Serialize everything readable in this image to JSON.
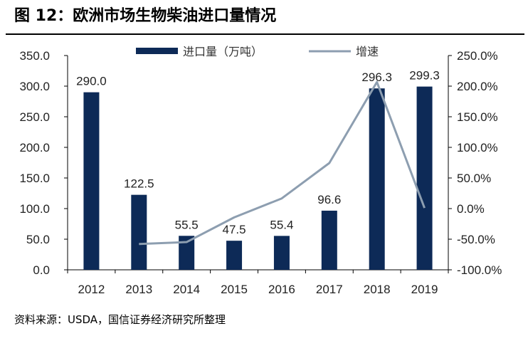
{
  "title": "图 12：欧洲市场生物柴油进口量情况",
  "source": "资料来源：USDA，国信证券经济研究所整理",
  "colors": {
    "bar": "#0d2a57",
    "line": "#8d9eb0"
  },
  "chart_data": {
    "type": "bar+line",
    "categories": [
      "2012",
      "2013",
      "2014",
      "2015",
      "2016",
      "2017",
      "2018",
      "2019"
    ],
    "series": [
      {
        "name": "进口量（万吨）",
        "type": "bar",
        "axis": "left",
        "values": [
          290.0,
          122.5,
          55.5,
          47.5,
          55.4,
          96.6,
          296.3,
          299.3
        ],
        "labels": [
          "290.0",
          "122.5",
          "55.5",
          "47.5",
          "55.4",
          "96.6",
          "296.3",
          "299.3"
        ]
      },
      {
        "name": "增速",
        "type": "line",
        "axis": "right",
        "values": [
          null,
          -57.8,
          -54.7,
          -14.4,
          16.6,
          74.4,
          206.7,
          1.0
        ]
      }
    ],
    "y_left": {
      "lim": [
        0,
        350
      ],
      "ticks": [
        "0.0",
        "50.0",
        "100.0",
        "150.0",
        "200.0",
        "250.0",
        "300.0",
        "350.0"
      ]
    },
    "y_right": {
      "lim": [
        -100,
        250
      ],
      "ticks": [
        "-100.0%",
        "-50.0%",
        "0.0%",
        "50.0%",
        "100.0%",
        "150.0%",
        "200.0%",
        "250.0%"
      ]
    },
    "legend": "top",
    "grid": false
  }
}
